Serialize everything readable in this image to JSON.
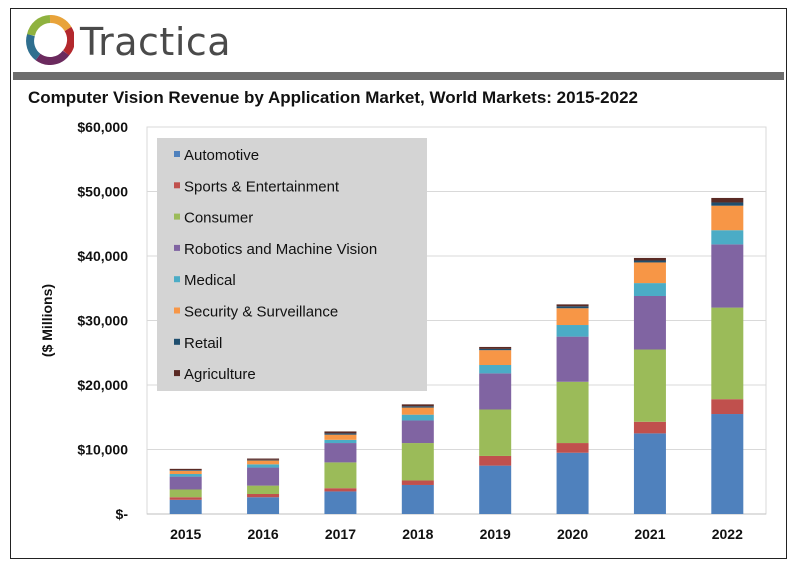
{
  "brand": {
    "name": "Tractica"
  },
  "colors": {
    "automotive": "#4f81bd",
    "sports": "#c0504d",
    "consumer": "#9bbb59",
    "robotics": "#8064a2",
    "medical": "#4bacc6",
    "security": "#f79646",
    "retail": "#1f4e6e",
    "agriculture": "#5a2a24",
    "legend_bg": "#d4d4d4",
    "grid": "#d9d9d9"
  },
  "chart_data": {
    "type": "bar",
    "stacked": true,
    "title": "Computer Vision Revenue by Application Market, World Markets: 2015-2022",
    "xlabel": "",
    "ylabel": "($ Millions)",
    "ylim": [
      0,
      60000
    ],
    "yticks": [
      0,
      10000,
      20000,
      30000,
      40000,
      50000,
      60000
    ],
    "ytick_labels": [
      "$-",
      "$10,000",
      "$20,000",
      "$30,000",
      "$40,000",
      "$50,000",
      "$60,000"
    ],
    "categories": [
      "2015",
      "2016",
      "2017",
      "2018",
      "2019",
      "2020",
      "2021",
      "2022"
    ],
    "legend_position": "top-left",
    "series": [
      {
        "name": "Automotive",
        "color_key": "automotive",
        "values": [
          2200,
          2600,
          3500,
          4500,
          7500,
          9500,
          12500,
          15500
        ]
      },
      {
        "name": "Sports & Entertainment",
        "color_key": "sports",
        "values": [
          400,
          500,
          500,
          700,
          1500,
          1500,
          1800,
          2300
        ]
      },
      {
        "name": "Consumer",
        "color_key": "consumer",
        "values": [
          1200,
          1300,
          4000,
          5800,
          7200,
          9500,
          11200,
          14200
        ]
      },
      {
        "name": "Robotics and Machine Vision",
        "color_key": "robotics",
        "values": [
          2000,
          2800,
          3000,
          3500,
          5600,
          7000,
          8300,
          9800
        ]
      },
      {
        "name": "Medical",
        "color_key": "medical",
        "values": [
          400,
          500,
          500,
          900,
          1300,
          1800,
          2000,
          2200
        ]
      },
      {
        "name": "Security & Surveillance",
        "color_key": "security",
        "values": [
          500,
          600,
          800,
          1100,
          2300,
          2600,
          3200,
          3800
        ]
      },
      {
        "name": "Retail",
        "color_key": "retail",
        "values": [
          100,
          100,
          200,
          200,
          200,
          300,
          300,
          500
        ]
      },
      {
        "name": "Agriculture",
        "color_key": "agriculture",
        "values": [
          200,
          200,
          300,
          300,
          300,
          300,
          400,
          700
        ]
      }
    ]
  }
}
